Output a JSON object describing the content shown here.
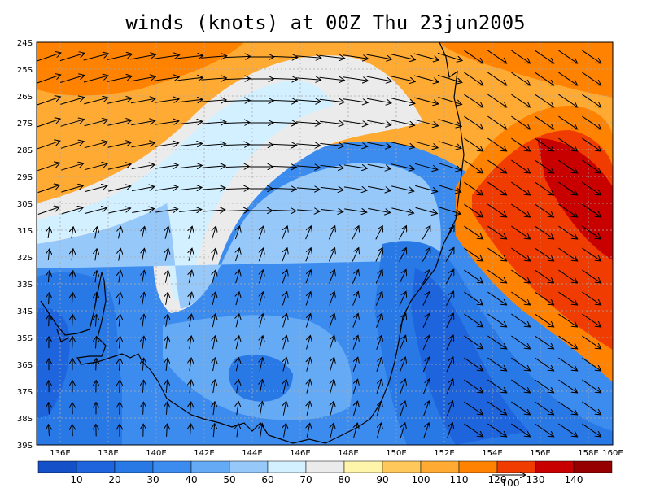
{
  "title": "winds (knots) at 00Z Thu 23jun2005",
  "lat_labels": [
    "24S",
    "25S",
    "26S",
    "27S",
    "28S",
    "29S",
    "30S",
    "31S",
    "32S",
    "33S",
    "34S",
    "35S",
    "36S",
    "37S",
    "38S",
    "39S"
  ],
  "lon_labels": [
    "136E",
    "138E",
    "140E",
    "142E",
    "144E",
    "146E",
    "148E",
    "150E",
    "152E",
    "154E",
    "156E",
    "158E",
    "160E"
  ],
  "colorbar": {
    "labels": [
      "10",
      "20",
      "30",
      "40",
      "50",
      "60",
      "70",
      "80",
      "90",
      "100",
      "110",
      "120",
      "130",
      "140"
    ],
    "colors": [
      "#1450c8",
      "#1e64dc",
      "#2878e6",
      "#3c8cf0",
      "#64aaf5",
      "#96c8fa",
      "#d2f0ff",
      "#ebebeb",
      "#fff5aa",
      "#ffc85a",
      "#ffaa32",
      "#ff8200",
      "#f03c00",
      "#c80000",
      "#960000"
    ]
  },
  "vector_legend": "100",
  "colors": {
    "coast": "#000000",
    "grid": "#aaaaaa"
  }
}
